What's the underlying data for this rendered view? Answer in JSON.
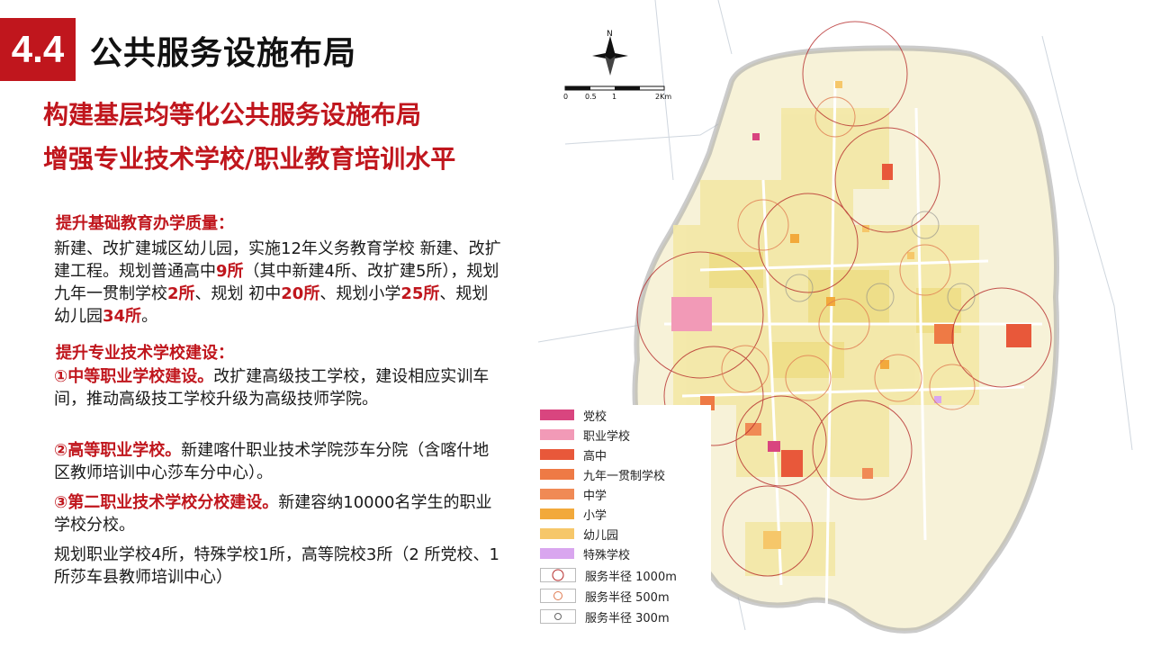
{
  "header": {
    "number": "4.4",
    "title": "公共服务设施布局",
    "subtitle1": "构建基层均等化公共服务设施布局",
    "subtitle2": "增强专业技术学校/职业教育培训水平"
  },
  "section1": {
    "heading": "提升基础教育办学质量：",
    "p1a": "新建、改扩建城区幼儿园，实施12年义务教育学校 新建、改扩建工程。规划普通高中",
    "hs": "9所",
    "p1b": "（其中新建4所、改扩建5所），规划九年一贯制学校",
    "nine": "2所",
    "p1c": "、规划 初中",
    "jr": "20所",
    "p1d": "、规划小学",
    "pr": "25所",
    "p1e": "、规划幼儿园",
    "kg": "34所",
    "p1f": "。"
  },
  "section2": {
    "heading": "提升专业技术学校建设：",
    "item1_title": "①中等职业学校建设。",
    "item1_text": "改扩建高级技工学校，建设相应实训车间，推动高级技工学校升级为高级技师学院。",
    "item2_title": "②高等职业学校。",
    "item2_text": "新建喀什职业技术学院莎车分院（含喀什地区教师培训中心莎车分中心）。",
    "item3_title": "③第二职业技术学校分校建设。",
    "item3_text": "新建容纳10000名学生的职业学校分校。",
    "summary": "规划职业学校4所，特殊学校1所，高等院校3所（2 所党校、1所莎车县教师培训中心）"
  },
  "map": {
    "north_label": "N",
    "scale_labels": [
      "0",
      "0.5",
      "1",
      "2Km"
    ]
  },
  "legend": {
    "items": [
      {
        "label": "党校",
        "color": "#d9457f"
      },
      {
        "label": "职业学校",
        "color": "#f29ab7"
      },
      {
        "label": "高中",
        "color": "#e8583a"
      },
      {
        "label": "九年一贯制学校",
        "color": "#ee7a45"
      },
      {
        "label": "中学",
        "color": "#f08a55"
      },
      {
        "label": "小学",
        "color": "#f2a93b"
      },
      {
        "label": "幼儿园",
        "color": "#f6c76a"
      },
      {
        "label": "特殊学校",
        "color": "#d9a6ef"
      }
    ],
    "circles": [
      {
        "label": "服务半径 1000m",
        "color": "#b52a2a"
      },
      {
        "label": "服务半径 500m",
        "color": "#e07a50"
      },
      {
        "label": "服务半径 300m",
        "color": "#666666"
      }
    ]
  }
}
